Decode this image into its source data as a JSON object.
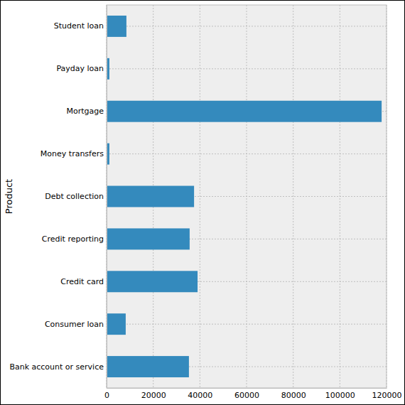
{
  "chart_data": {
    "type": "bar",
    "orientation": "horizontal",
    "y_label": "Product",
    "categories": [
      "Bank account or service",
      "Consumer loan",
      "Credit card",
      "Credit reporting",
      "Debt collection",
      "Money transfers",
      "Mortgage",
      "Payday loan",
      "Student loan"
    ],
    "values": [
      35300,
      8200,
      39000,
      35600,
      37500,
      1200,
      117900,
      1200,
      8500
    ],
    "color": "#348abd",
    "xlim": [
      0,
      120000
    ],
    "xticks": [
      0,
      20000,
      40000,
      60000,
      80000,
      100000,
      120000
    ],
    "grid": true
  }
}
